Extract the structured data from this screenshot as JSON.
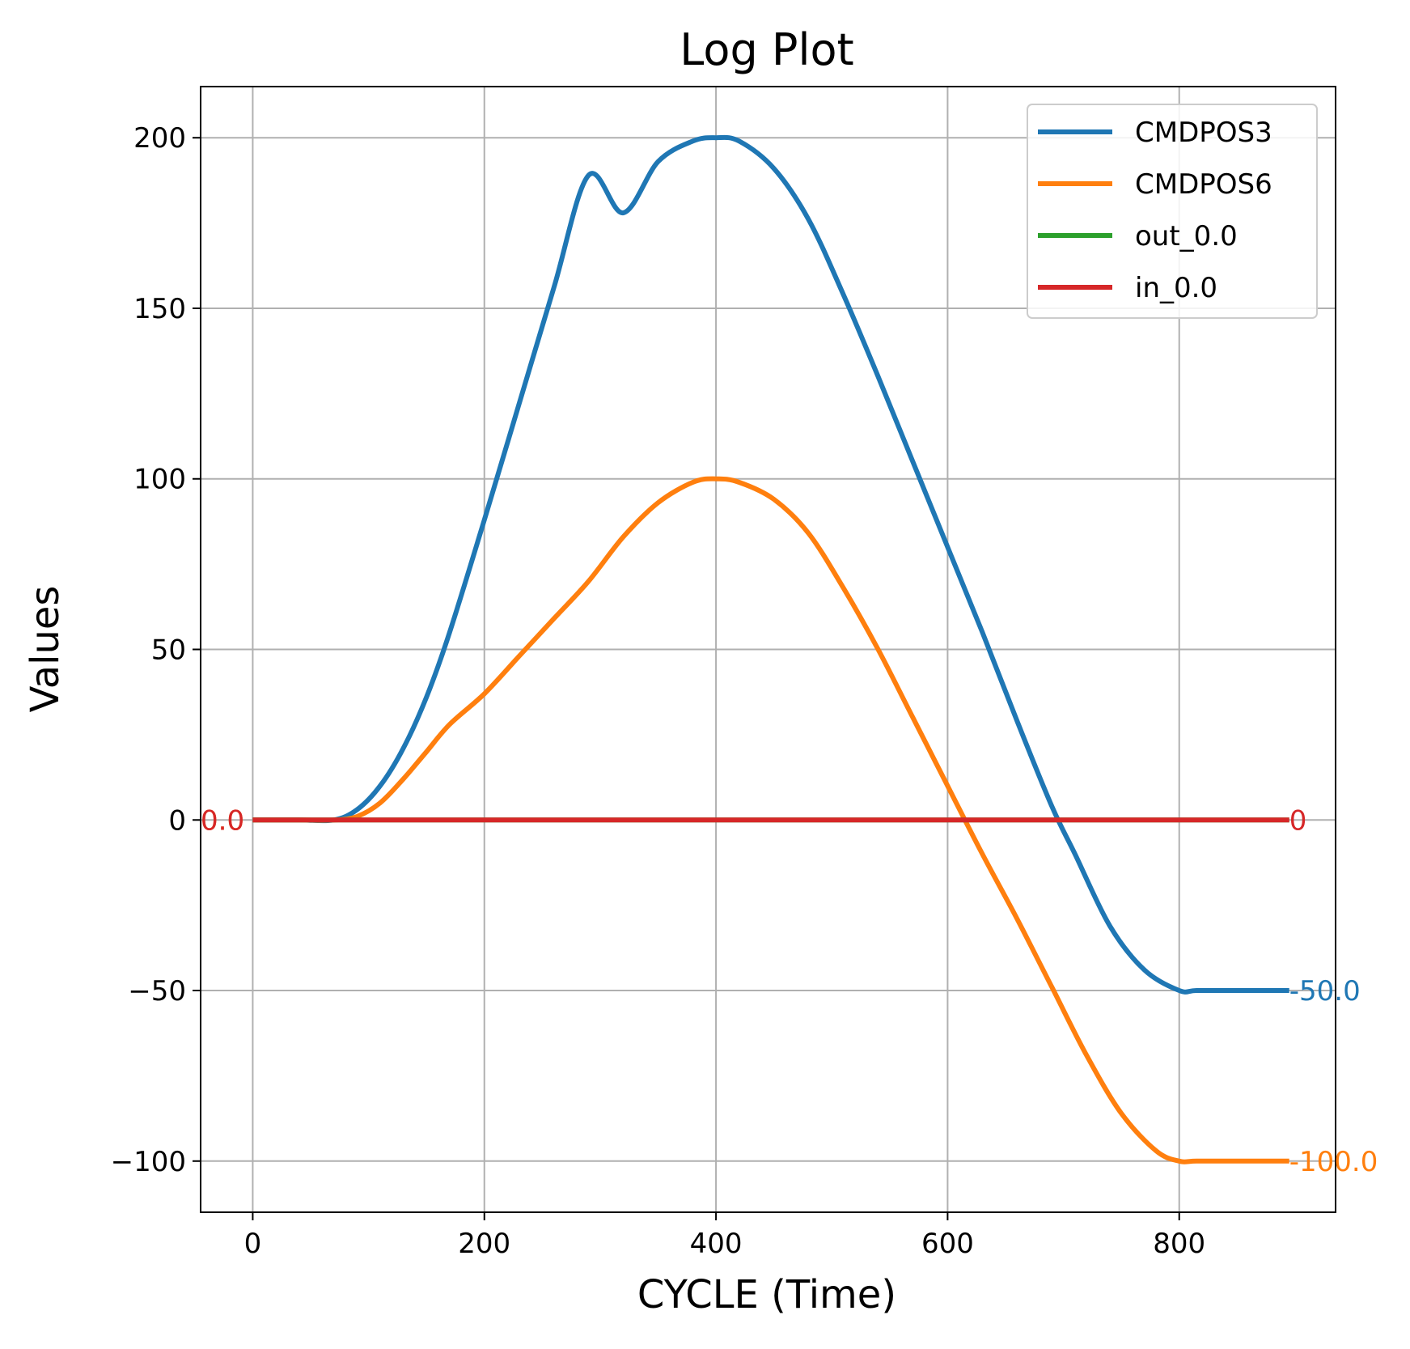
{
  "chart_data": {
    "type": "line",
    "title": "Log Plot",
    "xlabel": "CYCLE (Time)",
    "ylabel": "Values",
    "xlim": [
      -45,
      935
    ],
    "ylim": [
      -115,
      215
    ],
    "xticks": [
      0,
      200,
      400,
      600,
      800
    ],
    "xtick_labels": [
      "0",
      "200",
      "400",
      "600",
      "800"
    ],
    "yticks": [
      -100,
      -50,
      0,
      50,
      100,
      150,
      200
    ],
    "ytick_labels": [
      "−100",
      "−50",
      "0",
      "50",
      "100",
      "150",
      "200"
    ],
    "grid": true,
    "legend_position": "top-right",
    "series": [
      {
        "name": "CMDPOS3",
        "color": "#1f77b4",
        "x": [
          0,
          40,
          70,
          90,
          110,
          130,
          150,
          170,
          200,
          230,
          260,
          290,
          320,
          350,
          380,
          400,
          420,
          450,
          480,
          510,
          540,
          570,
          600,
          630,
          660,
          690,
          710,
          740,
          770,
          800,
          815,
          850,
          895
        ],
        "y": [
          0,
          0,
          0,
          3,
          10,
          21,
          36,
          55,
          88,
          122,
          156,
          189,
          178,
          193,
          199,
          200,
          199,
          191,
          176,
          154,
          130,
          105,
          80,
          55,
          29,
          4,
          -10,
          -31,
          -44,
          -50,
          -50,
          -50,
          -50
        ]
      },
      {
        "name": "CMDPOS6",
        "color": "#ff7f0e",
        "x": [
          0,
          40,
          70,
          90,
          110,
          130,
          150,
          170,
          200,
          230,
          260,
          290,
          320,
          350,
          380,
          400,
          420,
          450,
          480,
          510,
          540,
          570,
          600,
          630,
          660,
          690,
          720,
          750,
          780,
          800,
          815,
          850,
          895
        ],
        "y": [
          0,
          0,
          0,
          1,
          5,
          12,
          20,
          28,
          37,
          48,
          59,
          70,
          83,
          93,
          99,
          100,
          99,
          94,
          84,
          68,
          50,
          30,
          10,
          -10,
          -29,
          -49,
          -69,
          -86,
          -97,
          -100,
          -100,
          -100,
          -100
        ]
      },
      {
        "name": "out_0.0",
        "color": "#2ca02c",
        "x": [
          0,
          895
        ],
        "y": [
          0,
          0
        ]
      },
      {
        "name": "in_0.0",
        "color": "#d62728",
        "x": [
          0,
          895
        ],
        "y": [
          0,
          0
        ]
      }
    ],
    "annotations": [
      {
        "text": "0.0",
        "x": -45,
        "y": 0,
        "color": "#ff7f0e"
      },
      {
        "text": "0.0",
        "x": -45,
        "y": 0,
        "color": "#d62728"
      },
      {
        "text": "-50.0",
        "x": 895,
        "y": -50,
        "color": "#1f77b4"
      },
      {
        "text": "-100.0",
        "x": 895,
        "y": -100,
        "color": "#ff7f0e"
      },
      {
        "text": "0",
        "x": 895,
        "y": 0,
        "color": "#d62728"
      }
    ]
  }
}
